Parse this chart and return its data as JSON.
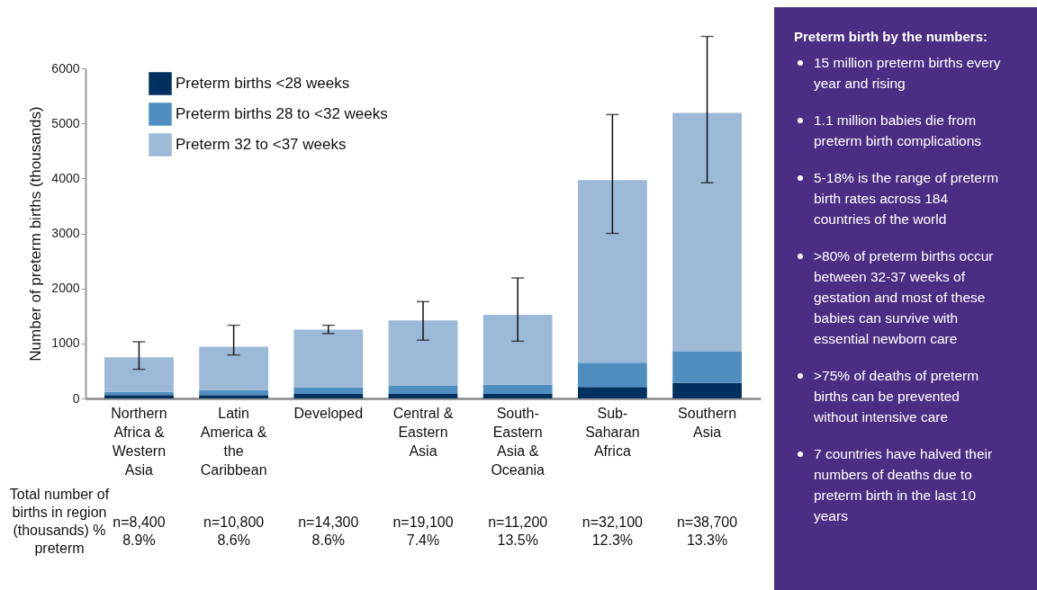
{
  "chart_data": [
    {
      "type": "bar",
      "ylabel": "Number of preterm births (thousands)",
      "categories": [
        "Northern Africa & Western Asia",
        "Latin America & the Caribbean",
        "Developed",
        "Central & Eastern Asia",
        "South-Eastern Asia & Oceania",
        "Sub-Saharan Africa",
        "Southern Asia"
      ],
      "stacked": true,
      "series": [
        {
          "name": "Preterm births <28 weeks",
          "color": "#00305f",
          "values": [
            60,
            60,
            80,
            80,
            80,
            210,
            280
          ]
        },
        {
          "name": "Preterm births 28 to <32 weeks",
          "color": "#4f8fc0",
          "values": [
            60,
            90,
            120,
            150,
            170,
            440,
            570
          ]
        },
        {
          "name": "Preterm 32 to <37 weeks",
          "color": "#9db9d8",
          "values": [
            630,
            790,
            1050,
            1190,
            1270,
            3320,
            4340
          ],
          "errors": [
            [
              530,
              1030
            ],
            [
              790,
              1330
            ],
            [
              1180,
              1330
            ],
            [
              1060,
              1760
            ],
            [
              1040,
              2190
            ],
            [
              3000,
              5160
            ],
            [
              3920,
              6580
            ]
          ]
        }
      ],
      "ylim": [
        0,
        6000
      ],
      "yticks": [
        0,
        1000,
        2000,
        3000,
        4000,
        5000,
        6000
      ],
      "grid": false,
      "legend": "top left",
      "annotations": [
        "Total number of births in region (thousands) % preterm",
        "n=8,400 8.9%",
        "n=10,800 8.6%",
        "n=14,300 8.6%",
        "n=19,100 7.4%",
        "n=11,200 13.5%",
        "n=32,100 12.3%",
        "n=38,700 13.3%"
      ]
    },
    {
      "type": "other",
      "title": "Preterm birth by the numbers:",
      "annotations": [
        "15 million preterm births every year and rising",
        "1.1 million babies die from preterm birth complications",
        "5-18% is the range of preterm birth rates across 184 countries of the world",
        ">80% of preterm births occur between 32-37 weeks of gestation and most of these babies can survive with essential newborn care",
        ">75% of deaths of preterm births can be prevented without intensive care",
        "7 countries have halved their numbers of deaths due to preterm birth in the last 10 years"
      ]
    }
  ]
}
